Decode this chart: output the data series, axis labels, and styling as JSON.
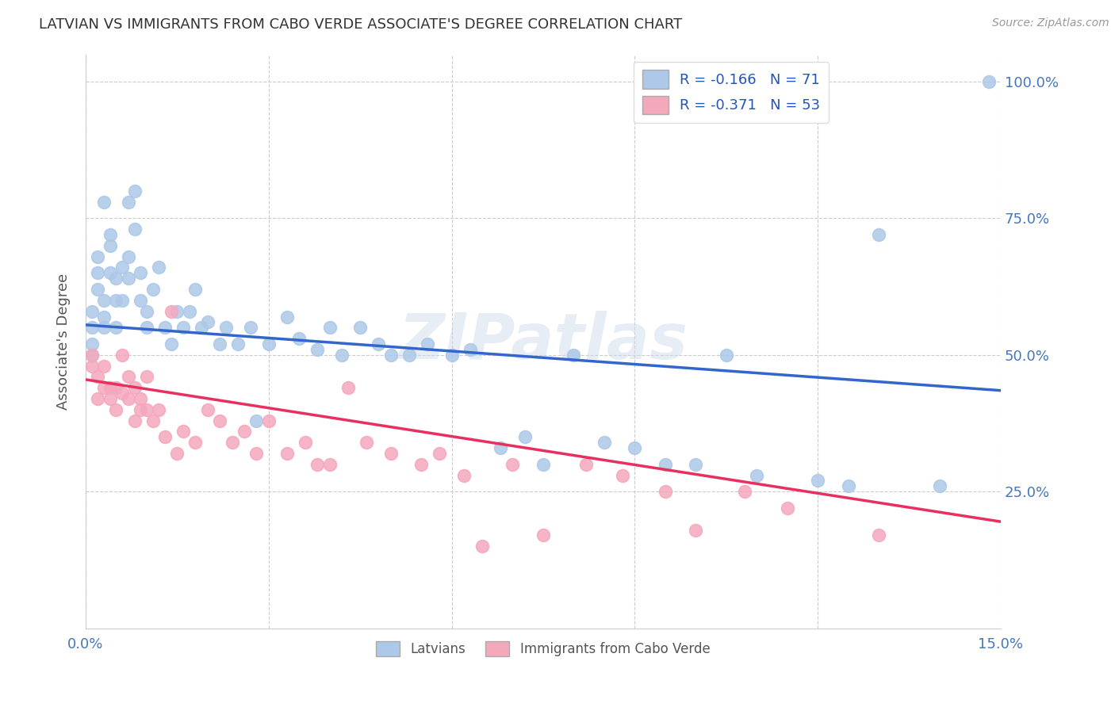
{
  "title": "LATVIAN VS IMMIGRANTS FROM CABO VERDE ASSOCIATE'S DEGREE CORRELATION CHART",
  "source": "Source: ZipAtlas.com",
  "ylabel": "Associate's Degree",
  "xmin": 0.0,
  "xmax": 0.15,
  "ymin": 0.0,
  "ymax": 1.05,
  "yticks": [
    0.25,
    0.5,
    0.75,
    1.0
  ],
  "ytick_labels": [
    "25.0%",
    "50.0%",
    "75.0%",
    "100.0%"
  ],
  "xticks": [
    0.0,
    0.03,
    0.06,
    0.09,
    0.12,
    0.15
  ],
  "blue_R": -0.166,
  "blue_N": 71,
  "pink_R": -0.371,
  "pink_N": 53,
  "blue_color": "#adc8e8",
  "pink_color": "#f4a8bc",
  "blue_line_color": "#3366cc",
  "pink_line_color": "#e83060",
  "watermark": "ZIPatlas",
  "blue_line_y0": 0.555,
  "blue_line_y1": 0.435,
  "pink_line_y0": 0.455,
  "pink_line_y1": 0.195,
  "blue_scatter_x": [
    0.001,
    0.001,
    0.001,
    0.001,
    0.002,
    0.002,
    0.002,
    0.003,
    0.003,
    0.003,
    0.003,
    0.004,
    0.004,
    0.004,
    0.005,
    0.005,
    0.005,
    0.006,
    0.006,
    0.007,
    0.007,
    0.007,
    0.008,
    0.008,
    0.009,
    0.009,
    0.01,
    0.01,
    0.011,
    0.012,
    0.013,
    0.014,
    0.015,
    0.016,
    0.017,
    0.018,
    0.019,
    0.02,
    0.022,
    0.023,
    0.025,
    0.027,
    0.028,
    0.03,
    0.033,
    0.035,
    0.038,
    0.04,
    0.042,
    0.045,
    0.048,
    0.05,
    0.053,
    0.056,
    0.06,
    0.063,
    0.068,
    0.072,
    0.075,
    0.08,
    0.085,
    0.09,
    0.095,
    0.1,
    0.105,
    0.11,
    0.12,
    0.125,
    0.13,
    0.14,
    0.148
  ],
  "blue_scatter_y": [
    0.55,
    0.58,
    0.52,
    0.5,
    0.62,
    0.65,
    0.68,
    0.57,
    0.6,
    0.55,
    0.78,
    0.72,
    0.65,
    0.7,
    0.6,
    0.55,
    0.64,
    0.66,
    0.6,
    0.68,
    0.64,
    0.78,
    0.73,
    0.8,
    0.65,
    0.6,
    0.58,
    0.55,
    0.62,
    0.66,
    0.55,
    0.52,
    0.58,
    0.55,
    0.58,
    0.62,
    0.55,
    0.56,
    0.52,
    0.55,
    0.52,
    0.55,
    0.38,
    0.52,
    0.57,
    0.53,
    0.51,
    0.55,
    0.5,
    0.55,
    0.52,
    0.5,
    0.5,
    0.52,
    0.5,
    0.51,
    0.33,
    0.35,
    0.3,
    0.5,
    0.34,
    0.33,
    0.3,
    0.3,
    0.5,
    0.28,
    0.27,
    0.26,
    0.72,
    0.26,
    1.0
  ],
  "pink_scatter_x": [
    0.001,
    0.001,
    0.002,
    0.002,
    0.003,
    0.003,
    0.004,
    0.004,
    0.005,
    0.005,
    0.006,
    0.006,
    0.007,
    0.007,
    0.008,
    0.008,
    0.009,
    0.009,
    0.01,
    0.01,
    0.011,
    0.012,
    0.013,
    0.014,
    0.015,
    0.016,
    0.018,
    0.02,
    0.022,
    0.024,
    0.026,
    0.028,
    0.03,
    0.033,
    0.036,
    0.038,
    0.04,
    0.043,
    0.046,
    0.05,
    0.055,
    0.058,
    0.062,
    0.065,
    0.07,
    0.075,
    0.082,
    0.088,
    0.095,
    0.1,
    0.108,
    0.115,
    0.13
  ],
  "pink_scatter_y": [
    0.5,
    0.48,
    0.46,
    0.42,
    0.48,
    0.44,
    0.42,
    0.44,
    0.44,
    0.4,
    0.5,
    0.43,
    0.46,
    0.42,
    0.44,
    0.38,
    0.4,
    0.42,
    0.46,
    0.4,
    0.38,
    0.4,
    0.35,
    0.58,
    0.32,
    0.36,
    0.34,
    0.4,
    0.38,
    0.34,
    0.36,
    0.32,
    0.38,
    0.32,
    0.34,
    0.3,
    0.3,
    0.44,
    0.34,
    0.32,
    0.3,
    0.32,
    0.28,
    0.15,
    0.3,
    0.17,
    0.3,
    0.28,
    0.25,
    0.18,
    0.25,
    0.22,
    0.17
  ]
}
